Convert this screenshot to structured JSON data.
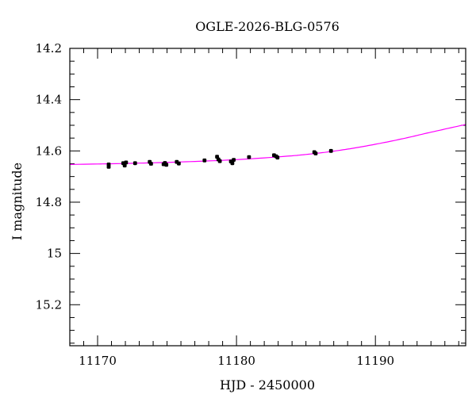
{
  "chart_data": {
    "type": "scatter",
    "title": "OGLE-2026-BLG-0576",
    "xlabel": "HJD - 2450000",
    "ylabel": "I magnitude",
    "xlim": [
      11168,
      11196.5
    ],
    "ylim": [
      15.36,
      14.2
    ],
    "y_inverted": true,
    "grid": false,
    "x_major_ticks": [
      11170,
      11180,
      11190
    ],
    "x_tick_labels": [
      "11170",
      "11180",
      "11190"
    ],
    "y_major_ticks": [
      14.2,
      14.4,
      14.6,
      14.8,
      15.0,
      15.2
    ],
    "y_tick_labels": [
      "14.2",
      "14.4",
      "14.6",
      "14.8",
      "15",
      "15.2"
    ],
    "series": [
      {
        "kind": "points",
        "color": "#000000",
        "x": [
          11170.8,
          11170.8,
          11171.85,
          11171.95,
          11172.05,
          11172.7,
          11173.75,
          11173.85,
          11174.75,
          11174.85,
          11174.95,
          11175.7,
          11175.85,
          11177.7,
          11178.6,
          11178.7,
          11178.8,
          11179.6,
          11179.7,
          11179.8,
          11180.9,
          11182.7,
          11182.85,
          11182.95,
          11185.6,
          11185.7,
          11186.8
        ],
        "y": [
          14.653,
          14.662,
          14.648,
          14.657,
          14.645,
          14.648,
          14.643,
          14.65,
          14.652,
          14.647,
          14.654,
          14.643,
          14.649,
          14.637,
          14.623,
          14.633,
          14.64,
          14.641,
          14.648,
          14.635,
          14.624,
          14.617,
          14.621,
          14.626,
          14.605,
          14.61,
          14.6
        ]
      },
      {
        "kind": "model",
        "color": "#ff00ff",
        "x": [
          11168,
          11172,
          11176,
          11180,
          11184,
          11186,
          11188,
          11190,
          11192,
          11194,
          11196.5
        ],
        "y": [
          14.653,
          14.649,
          14.643,
          14.634,
          14.619,
          14.608,
          14.593,
          14.574,
          14.552,
          14.527,
          14.497
        ]
      }
    ]
  }
}
